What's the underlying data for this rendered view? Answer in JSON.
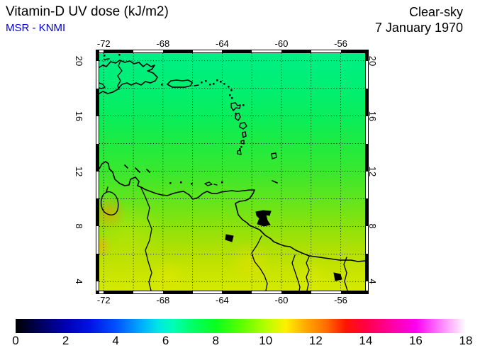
{
  "header": {
    "title": "Vitamin-D UV dose (kJ/m2)",
    "source": "MSR - KNMI",
    "source_color": "#0000CC",
    "condition": "Clear-sky",
    "date": "7 January 1970"
  },
  "chart_data": {
    "type": "heatmap",
    "title": "Vitamin-D UV dose (kJ/m2)",
    "subtitle": "MSR - KNMI",
    "scenario": "Clear-sky",
    "date": "7 January 1970",
    "units": "kJ/m2",
    "region": "Caribbean and northern South America",
    "lon_range": [
      -72.3,
      -54.35
    ],
    "lat_range": [
      3.35,
      20.55
    ],
    "grid_step_deg": 2,
    "grid_style": "dotted",
    "x_ticks": [
      {
        "value": -72,
        "label": "-72"
      },
      {
        "value": -68,
        "label": "-68"
      },
      {
        "value": -64,
        "label": "-64"
      },
      {
        "value": -60,
        "label": "-60"
      },
      {
        "value": -56,
        "label": "-56"
      }
    ],
    "y_ticks": [
      {
        "value": 4,
        "label": "4"
      },
      {
        "value": 8,
        "label": "8"
      },
      {
        "value": 12,
        "label": "12"
      },
      {
        "value": 16,
        "label": "16"
      },
      {
        "value": 20,
        "label": "20"
      }
    ],
    "field": {
      "description": "Clear-sky vitamin-D UV dose increasing smoothly from about 7.8 kJ/m2 at 20N (spring green) to about 10 kJ/m2 at 4N (yellow-green), with a local maximum of about 11 kJ/m2 (orange) near the Guajira peninsula / Lake Maracaibo",
      "lat_profile": [
        {
          "lat": 20,
          "value": 7.8
        },
        {
          "lat": 16,
          "value": 8.1
        },
        {
          "lat": 12,
          "value": 8.6
        },
        {
          "lat": 8,
          "value": 9.2
        },
        {
          "lat": 4,
          "value": 9.9
        }
      ],
      "gradient_stops": [
        {
          "pos": 0.0,
          "color": "#00EF86"
        },
        {
          "pos": 0.15,
          "color": "#00EF72"
        },
        {
          "pos": 0.28,
          "color": "#0BED58"
        },
        {
          "pos": 0.4,
          "color": "#22EB3E"
        },
        {
          "pos": 0.52,
          "color": "#3FE72B"
        },
        {
          "pos": 0.63,
          "color": "#66E51A"
        },
        {
          "pos": 0.73,
          "color": "#8CE20C"
        },
        {
          "pos": 0.82,
          "color": "#ADE004"
        },
        {
          "pos": 0.9,
          "color": "#C4E300"
        },
        {
          "pos": 1.0,
          "color": "#D5E900"
        }
      ],
      "hotspots": [
        {
          "x": 13,
          "y": 225,
          "r": 26,
          "color": "rgba(255,145,0,0.55)"
        },
        {
          "x": 2,
          "y": 272,
          "r": 17,
          "color": "rgba(255,165,0,0.50)"
        },
        {
          "x": 40,
          "y": 255,
          "r": 50,
          "color": "rgba(235,235,0,0.25)"
        },
        {
          "x": 213,
          "y": 295,
          "r": 32,
          "color": "rgba(250,225,0,0.35)"
        },
        {
          "x": 98,
          "y": 316,
          "r": 26,
          "color": "rgba(245,235,0,0.30)"
        },
        {
          "x": 300,
          "y": 320,
          "r": 28,
          "color": "rgba(240,240,0,0.22)"
        }
      ]
    },
    "colorbar": {
      "min": 0,
      "max": 18,
      "tick_step": 2,
      "ticks": [
        "0",
        "2",
        "4",
        "6",
        "8",
        "10",
        "12",
        "14",
        "16",
        "18"
      ],
      "stops": [
        {
          "value": 0,
          "color": "#000000"
        },
        {
          "value": 1,
          "color": "#00005E"
        },
        {
          "value": 2,
          "color": "#0000B4"
        },
        {
          "value": 3,
          "color": "#0014E6"
        },
        {
          "value": 4,
          "color": "#0050FF"
        },
        {
          "value": 5,
          "color": "#00AAFF"
        },
        {
          "value": 5.7,
          "color": "#00E6E6"
        },
        {
          "value": 6.3,
          "color": "#00FFB4"
        },
        {
          "value": 7,
          "color": "#00FF6E"
        },
        {
          "value": 8,
          "color": "#0AFF1E"
        },
        {
          "value": 9,
          "color": "#5AFF00"
        },
        {
          "value": 10,
          "color": "#B4FF00"
        },
        {
          "value": 10.8,
          "color": "#FFF000"
        },
        {
          "value": 11.6,
          "color": "#FFAA00"
        },
        {
          "value": 12.4,
          "color": "#FF6E00"
        },
        {
          "value": 13.2,
          "color": "#FF1400"
        },
        {
          "value": 14,
          "color": "#FF0046"
        },
        {
          "value": 15,
          "color": "#FF00A0"
        },
        {
          "value": 16,
          "color": "#FA00F0"
        },
        {
          "value": 17,
          "color": "#FF82FF"
        },
        {
          "value": 18,
          "color": "#FFFFFF"
        }
      ]
    }
  }
}
